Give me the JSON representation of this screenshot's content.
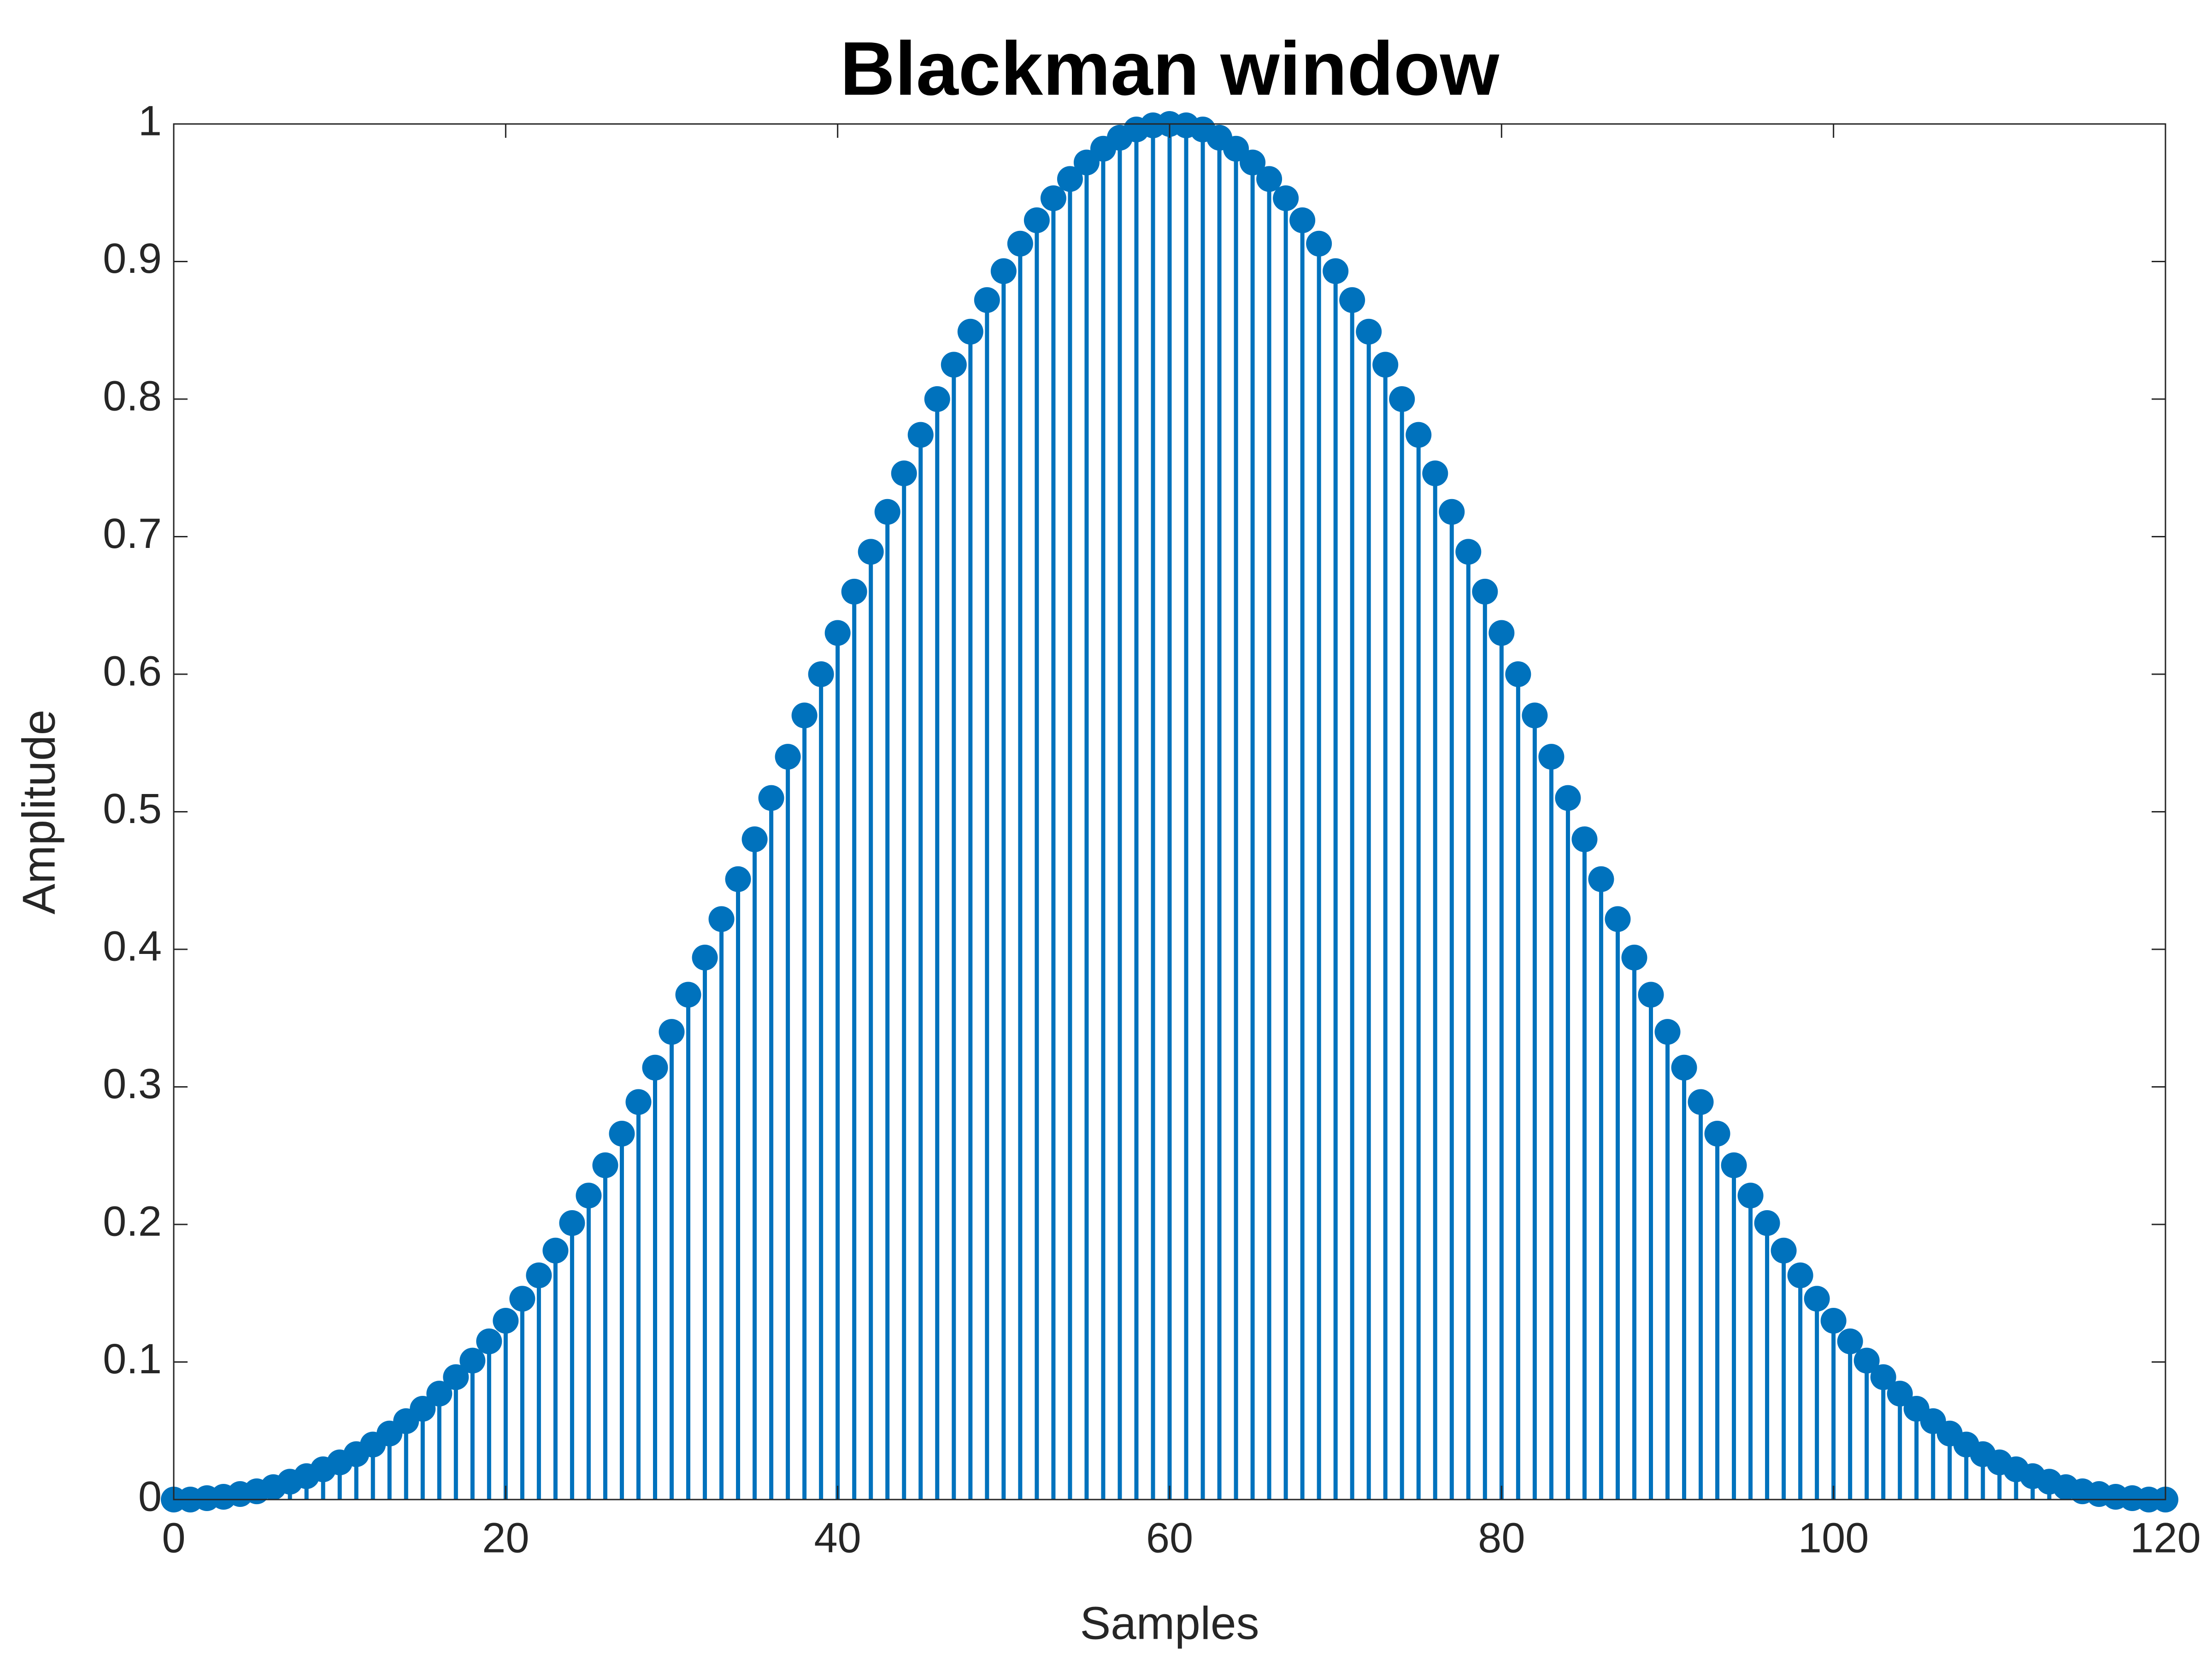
{
  "chart_data": {
    "type": "stem",
    "title": "Blackman window",
    "x_label": "Samples",
    "y_label": "Amplitude",
    "x": [
      0,
      1,
      2,
      3,
      4,
      5,
      6,
      7,
      8,
      9,
      10,
      11,
      12,
      13,
      14,
      15,
      16,
      17,
      18,
      19,
      20,
      21,
      22,
      23,
      24,
      25,
      26,
      27,
      28,
      29,
      30,
      31,
      32,
      33,
      34,
      35,
      36,
      37,
      38,
      39,
      40,
      41,
      42,
      43,
      44,
      45,
      46,
      47,
      48,
      49,
      50,
      51,
      52,
      53,
      54,
      55,
      56,
      57,
      58,
      59,
      60,
      61,
      62,
      63,
      64,
      65,
      66,
      67,
      68,
      69,
      70,
      71,
      72,
      73,
      74,
      75,
      76,
      77,
      78,
      79,
      80,
      81,
      82,
      83,
      84,
      85,
      86,
      87,
      88,
      89,
      90,
      91,
      92,
      93,
      94,
      95,
      96,
      97,
      98,
      99,
      100,
      101,
      102,
      103,
      104,
      105,
      106,
      107,
      108,
      109,
      110,
      111,
      112,
      113,
      114,
      115,
      116,
      117,
      118,
      119,
      120
    ],
    "values": [
      0,
      0,
      0.001,
      0.002,
      0.004,
      0.006,
      0.009,
      0.013,
      0.017,
      0.022,
      0.027,
      0.033,
      0.04,
      0.048,
      0.057,
      0.066,
      0.077,
      0.089,
      0.101,
      0.115,
      0.13,
      0.146,
      0.163,
      0.181,
      0.201,
      0.221,
      0.243,
      0.266,
      0.289,
      0.314,
      0.34,
      0.367,
      0.394,
      0.422,
      0.451,
      0.48,
      0.51,
      0.54,
      0.57,
      0.6,
      0.63,
      0.66,
      0.689,
      0.718,
      0.746,
      0.774,
      0.8,
      0.825,
      0.849,
      0.872,
      0.893,
      0.913,
      0.93,
      0.946,
      0.96,
      0.972,
      0.982,
      0.99,
      0.996,
      0.999,
      1,
      0.999,
      0.996,
      0.99,
      0.982,
      0.972,
      0.96,
      0.946,
      0.93,
      0.913,
      0.893,
      0.872,
      0.849,
      0.825,
      0.8,
      0.774,
      0.746,
      0.718,
      0.689,
      0.66,
      0.63,
      0.6,
      0.57,
      0.54,
      0.51,
      0.48,
      0.451,
      0.422,
      0.394,
      0.367,
      0.34,
      0.314,
      0.289,
      0.266,
      0.243,
      0.221,
      0.201,
      0.181,
      0.163,
      0.146,
      0.13,
      0.115,
      0.101,
      0.089,
      0.077,
      0.066,
      0.057,
      0.048,
      0.04,
      0.033,
      0.027,
      0.022,
      0.017,
      0.013,
      0.009,
      0.006,
      0.004,
      0.002,
      0.001,
      0,
      0
    ],
    "color": "#0072bd",
    "xlim": [
      0,
      120
    ],
    "xticks": [
      0,
      20,
      40,
      60,
      80,
      100,
      120
    ],
    "ylim": [
      0,
      1
    ],
    "yticks": [
      0,
      0.1,
      0.2,
      0.3,
      0.4,
      0.5,
      0.6,
      0.7,
      0.8,
      0.9,
      1
    ],
    "grid": false
  }
}
